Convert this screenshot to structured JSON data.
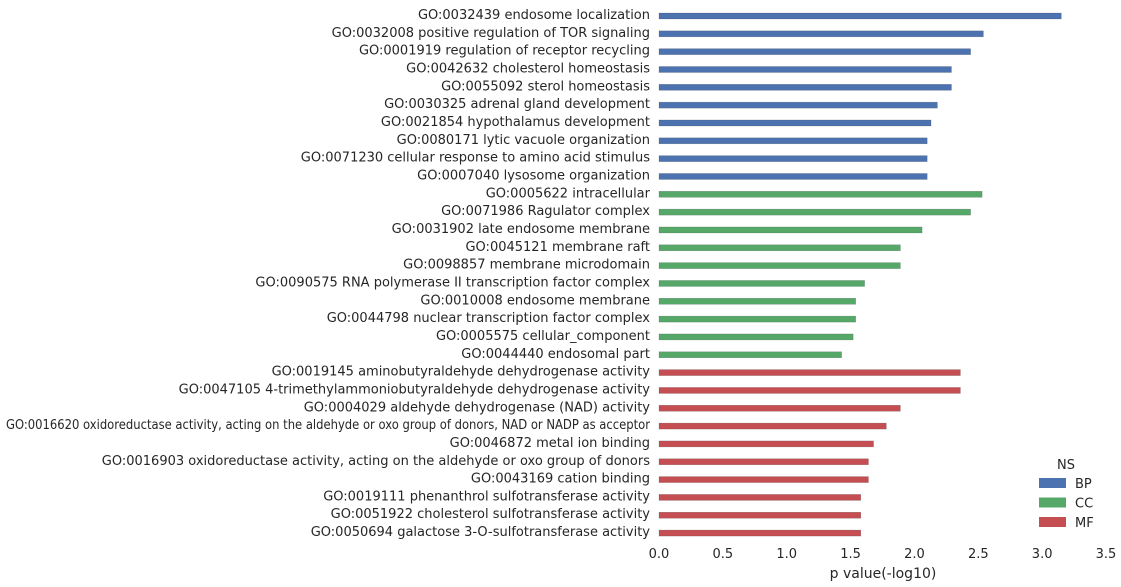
{
  "chart_data": {
    "type": "bar",
    "orientation": "horizontal",
    "xlabel": "p value(-log10)",
    "ylabel": "",
    "xlim": [
      0,
      3.5
    ],
    "xticks": [
      "0.0",
      "0.5",
      "1.0",
      "1.5",
      "2.0",
      "2.5",
      "3.0",
      "3.5"
    ],
    "grid": false,
    "legend": {
      "title": "NS",
      "position": "bottom-right",
      "entries": [
        {
          "name": "BP",
          "color": "#4c72b0"
        },
        {
          "name": "CC",
          "color": "#55a868"
        },
        {
          "name": "MF",
          "color": "#c44e52"
        }
      ]
    },
    "bars": [
      {
        "category": "GO:0032439 endosome localization",
        "value": 3.15,
        "ns": "BP"
      },
      {
        "category": "GO:0032008 positive regulation of TOR signaling",
        "value": 2.54,
        "ns": "BP"
      },
      {
        "category": "GO:0001919 regulation of receptor recycling",
        "value": 2.44,
        "ns": "BP"
      },
      {
        "category": "GO:0042632 cholesterol homeostasis",
        "value": 2.29,
        "ns": "BP"
      },
      {
        "category": "GO:0055092 sterol homeostasis",
        "value": 2.29,
        "ns": "BP"
      },
      {
        "category": "GO:0030325 adrenal gland development",
        "value": 2.18,
        "ns": "BP"
      },
      {
        "category": "GO:0021854 hypothalamus development",
        "value": 2.13,
        "ns": "BP"
      },
      {
        "category": "GO:0080171 lytic vacuole organization",
        "value": 2.1,
        "ns": "BP"
      },
      {
        "category": "GO:0071230 cellular response to amino acid stimulus",
        "value": 2.1,
        "ns": "BP"
      },
      {
        "category": "GO:0007040 lysosome organization",
        "value": 2.1,
        "ns": "BP"
      },
      {
        "category": "GO:0005622 intracellular",
        "value": 2.53,
        "ns": "CC"
      },
      {
        "category": "GO:0071986 Ragulator complex",
        "value": 2.44,
        "ns": "CC"
      },
      {
        "category": "GO:0031902 late endosome membrane",
        "value": 2.06,
        "ns": "CC"
      },
      {
        "category": "GO:0045121 membrane raft",
        "value": 1.89,
        "ns": "CC"
      },
      {
        "category": "GO:0098857 membrane microdomain",
        "value": 1.89,
        "ns": "CC"
      },
      {
        "category": "GO:0090575 RNA polymerase II transcription factor complex",
        "value": 1.61,
        "ns": "CC"
      },
      {
        "category": "GO:0010008 endosome membrane",
        "value": 1.54,
        "ns": "CC"
      },
      {
        "category": "GO:0044798 nuclear transcription factor complex",
        "value": 1.54,
        "ns": "CC"
      },
      {
        "category": "GO:0005575 cellular_component",
        "value": 1.52,
        "ns": "CC"
      },
      {
        "category": "GO:0044440 endosomal part",
        "value": 1.43,
        "ns": "CC"
      },
      {
        "category": "GO:0019145 aminobutyraldehyde dehydrogenase activity",
        "value": 2.36,
        "ns": "MF"
      },
      {
        "category": "GO:0047105 4-trimethylammoniobutyraldehyde dehydrogenase activity",
        "value": 2.36,
        "ns": "MF"
      },
      {
        "category": "GO:0004029 aldehyde dehydrogenase (NAD) activity",
        "value": 1.89,
        "ns": "MF"
      },
      {
        "category": "GO:0016620 oxidoreductase activity, acting on the aldehyde or oxo group of donors, NAD or NADP as acceptor",
        "value": 1.78,
        "ns": "MF"
      },
      {
        "category": "GO:0046872 metal ion binding",
        "value": 1.68,
        "ns": "MF"
      },
      {
        "category": "GO:0016903 oxidoreductase activity, acting on the aldehyde or oxo group of donors",
        "value": 1.64,
        "ns": "MF"
      },
      {
        "category": "GO:0043169 cation binding",
        "value": 1.64,
        "ns": "MF"
      },
      {
        "category": "GO:0019111 phenanthrol sulfotransferase activity",
        "value": 1.58,
        "ns": "MF"
      },
      {
        "category": "GO:0051922 cholesterol sulfotransferase activity",
        "value": 1.58,
        "ns": "MF"
      },
      {
        "category": "GO:0050694 galactose 3-O-sulfotransferase activity",
        "value": 1.58,
        "ns": "MF"
      }
    ]
  }
}
